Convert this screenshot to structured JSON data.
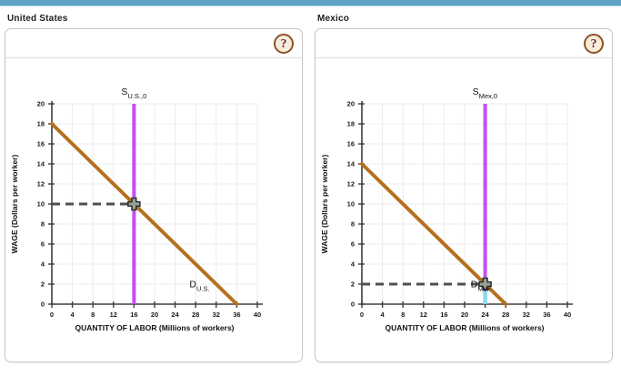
{
  "page": {
    "top_bar_color": "#5fa4c4",
    "background": "#ffffff"
  },
  "panels": [
    {
      "title": "United States",
      "help_button_label": "?",
      "chart_data": {
        "type": "line",
        "title": "",
        "xlabel": "QUANTITY OF LABOR (Millions of workers)",
        "ylabel": "WAGE (Dollars per worker)",
        "xlim": [
          0,
          40
        ],
        "ylim": [
          0,
          20
        ],
        "xticks": [
          0,
          4,
          8,
          12,
          16,
          20,
          24,
          28,
          32,
          36,
          40
        ],
        "yticks": [
          0,
          2,
          4,
          6,
          8,
          10,
          12,
          14,
          16,
          18,
          20
        ],
        "grid": true,
        "series": [
          {
            "name": "demand",
            "label": "D",
            "label_sub": "U.S.",
            "label_pos": [
              26.8,
              1.7
            ],
            "color": "#b5701f",
            "points": [
              [
                0,
                18
              ],
              [
                36,
                0
              ]
            ]
          },
          {
            "name": "supply",
            "label": "S",
            "label_sub": "U.S.,0",
            "color": "#c44ff0",
            "x": 16,
            "y_range": [
              0,
              20
            ]
          }
        ],
        "equilibrium": {
          "x": 16,
          "y": 10,
          "dashed_color": "#4f4f4f"
        }
      }
    },
    {
      "title": "Mexico",
      "help_button_label": "?",
      "chart_data": {
        "type": "line",
        "title": "",
        "xlabel": "QUANTITY OF LABOR (Millions of workers)",
        "ylabel": "WAGE (Dollars per worker)",
        "xlim": [
          0,
          40
        ],
        "ylim": [
          0,
          20
        ],
        "xticks": [
          0,
          4,
          8,
          12,
          16,
          20,
          24,
          28,
          32,
          36,
          40
        ],
        "yticks": [
          0,
          2,
          4,
          6,
          8,
          10,
          12,
          14,
          16,
          18,
          20
        ],
        "grid": true,
        "series": [
          {
            "name": "demand",
            "label": "D",
            "label_sub": "Mex",
            "label_pos": [
              21.2,
              1.7
            ],
            "color": "#b5701f",
            "points": [
              [
                0,
                14
              ],
              [
                28,
                0
              ]
            ]
          },
          {
            "name": "supply",
            "label": "S",
            "label_sub": "Mex,0",
            "color": "#c44ff0",
            "x": 24,
            "y_range": [
              0,
              20
            ],
            "tail": {
              "y_range": [
                0,
                2
              ],
              "color": "#86d7f5"
            }
          }
        ],
        "equilibrium": {
          "x": 24,
          "y": 2,
          "dashed_color": "#4f4f4f"
        }
      }
    }
  ],
  "style": {
    "grid_color": "#ececec",
    "axis_color": "#3d3d3d",
    "tick_label_color": "#1a1a1a",
    "handle_fill": "#98a198",
    "handle_stroke": "#2d2d2d"
  }
}
